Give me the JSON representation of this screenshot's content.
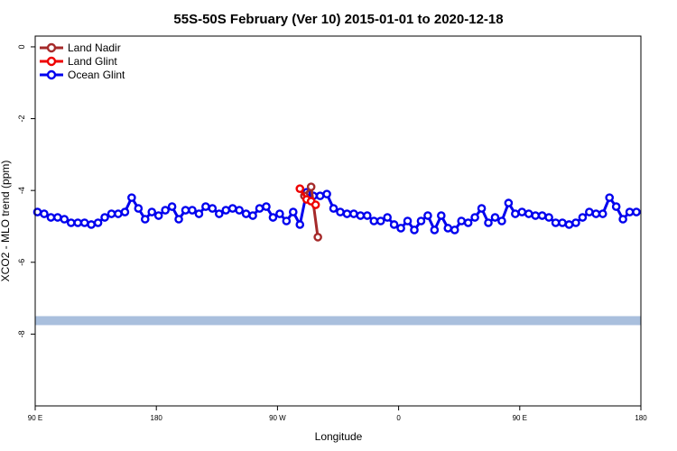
{
  "chart_data": {
    "type": "line",
    "title": "55S-50S February (Ver 10)   2015-01-01 to 2020-12-18",
    "xlabel": "Longitude",
    "ylabel": "XCO2 - MLO trend (ppm)",
    "xlim": [
      -90,
      180
    ],
    "ylim": [
      -10,
      0.3
    ],
    "x_ticks": [
      {
        "value": -90,
        "label": "90 E"
      },
      {
        "value": -36,
        "label": "180"
      },
      {
        "value": 18,
        "label": "90 W"
      },
      {
        "value": 72,
        "label": "0"
      },
      {
        "value": 126,
        "label": "90 E"
      },
      {
        "value": 180,
        "label": "180"
      }
    ],
    "y_ticks": [
      {
        "value": 0,
        "label": "0"
      },
      {
        "value": -2,
        "label": "-2"
      },
      {
        "value": -4,
        "label": "-4"
      },
      {
        "value": -6,
        "label": "-6"
      },
      {
        "value": -8,
        "label": "-8"
      }
    ],
    "legend_position": "top-left",
    "band": {
      "y_range": [
        -7.75,
        -7.5
      ],
      "color": "#a9bfdd"
    },
    "series": [
      {
        "name": "Land Nadir",
        "color": "#a52a2a",
        "x": [
          30,
          33,
          36
        ],
        "y": [
          -4.15,
          -3.9,
          -5.3
        ]
      },
      {
        "name": "Land Glint",
        "color": "#ee0000",
        "x": [
          28,
          31,
          33,
          35
        ],
        "y": [
          -3.95,
          -4.25,
          -4.3,
          -4.4
        ]
      },
      {
        "name": "Ocean Glint",
        "color": "#0000ee",
        "x": [
          -89,
          -86,
          -83,
          -80,
          -77,
          -74,
          -71,
          -68,
          -65,
          -62,
          -59,
          -56,
          -53,
          -50,
          -47,
          -44,
          -41,
          -38,
          -35,
          -32,
          -29,
          -26,
          -23,
          -20,
          -17,
          -14,
          -11,
          -8,
          -5,
          -2,
          1,
          4,
          7,
          10,
          13,
          16,
          19,
          22,
          25,
          28,
          31,
          34,
          37,
          40,
          43,
          46,
          49,
          52,
          55,
          58,
          61,
          64,
          67,
          70,
          73,
          76,
          79,
          82,
          85,
          88,
          91,
          94,
          97,
          100,
          103,
          106,
          109,
          112,
          115,
          118,
          121,
          124,
          127,
          130,
          133,
          136,
          139,
          142,
          145,
          148,
          151,
          154,
          157,
          160,
          163,
          166,
          169,
          172,
          175,
          178
        ],
        "y": [
          -4.6,
          -4.65,
          -4.75,
          -4.75,
          -4.8,
          -4.9,
          -4.9,
          -4.9,
          -4.95,
          -4.9,
          -4.75,
          -4.65,
          -4.65,
          -4.6,
          -4.2,
          -4.5,
          -4.8,
          -4.6,
          -4.7,
          -4.55,
          -4.45,
          -4.8,
          -4.55,
          -4.55,
          -4.65,
          -4.45,
          -4.5,
          -4.65,
          -4.55,
          -4.5,
          -4.55,
          -4.65,
          -4.7,
          -4.5,
          -4.45,
          -4.75,
          -4.65,
          -4.85,
          -4.6,
          -4.95,
          -4.05,
          -4.15,
          -4.15,
          -4.1,
          -4.5,
          -4.6,
          -4.65,
          -4.65,
          -4.7,
          -4.7,
          -4.85,
          -4.85,
          -4.75,
          -4.95,
          -5.05,
          -4.85,
          -5.1,
          -4.85,
          -4.7,
          -5.1,
          -4.7,
          -5.05,
          -5.1,
          -4.85,
          -4.9,
          -4.75,
          -4.5,
          -4.9,
          -4.75,
          -4.85,
          -4.35,
          -4.65,
          -4.6,
          -4.65,
          -4.7,
          -4.7,
          -4.75,
          -4.9,
          -4.9,
          -4.95,
          -4.9,
          -4.75,
          -4.6,
          -4.65,
          -4.65,
          -4.2,
          -4.45,
          -4.8,
          -4.6,
          -4.6
        ]
      }
    ]
  }
}
